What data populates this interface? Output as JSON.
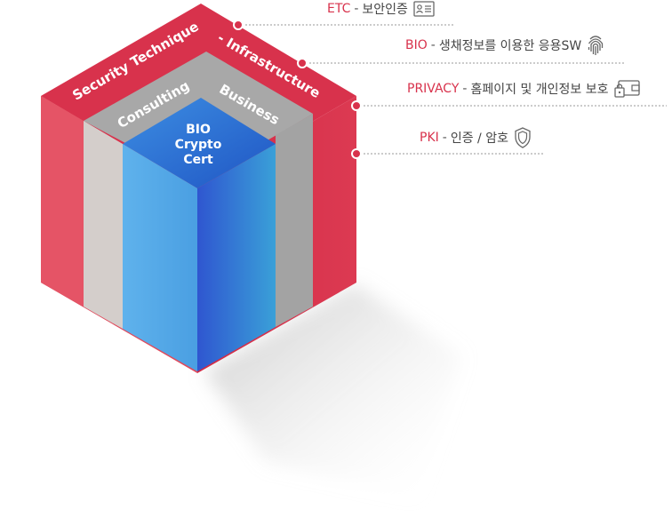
{
  "cube": {
    "outer_top_left": "Security Technique",
    "outer_top_right": "- Infrastructure",
    "middle_top_left": "Consulting",
    "middle_top_right": "Business",
    "core_line1": "BIO",
    "core_line2": "Crypto",
    "core_line3": "Cert"
  },
  "callouts": [
    {
      "key": "ETC",
      "sep": "-",
      "desc": "보안인증",
      "icon": "id-card-icon"
    },
    {
      "key": "BIO",
      "sep": "-",
      "desc": "생채정보를 이용한 응용SW",
      "icon": "fingerprint-icon"
    },
    {
      "key": "PRIVACY",
      "sep": "-",
      "desc": "홈페이지 및 개인정보 보호",
      "icon": "wallet-lock-icon"
    },
    {
      "key": "PKI",
      "sep": "-",
      "desc": "인증 / 암호",
      "icon": "shield-icon"
    }
  ],
  "colors": {
    "outer_red": "#d8324c",
    "outer_red_dark": "#c52a42",
    "middle_gray": "#a9a9a9",
    "core_blue": "#2f6fd6",
    "core_light": "#5aaae6"
  }
}
